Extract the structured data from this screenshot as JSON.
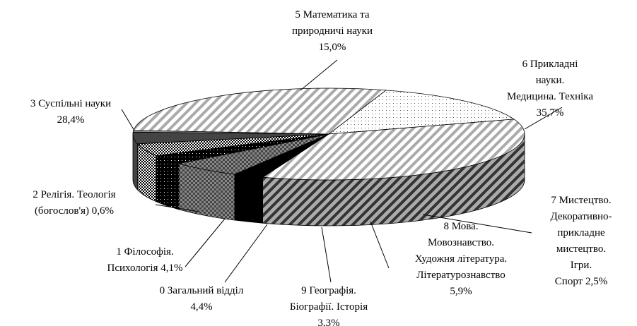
{
  "chart_data": {
    "type": "pie",
    "categories": [
      "5 Математика та\nприродничі науки",
      "6 Прикладні науки.\nМедицина. Техніка",
      "7 Мистецтво.\nДекоративно-\nприкладне\nмистецтво. Ігри.\nСпорт",
      "8 Мова.\nМовознавство.\nХудожня література.\nЛітературознавство",
      "9 Географія.\nБіографії. Історія",
      "0 Загальний відділ",
      "1 Філософія.\nПсихологія",
      "2 Релігія. Теологія\n(богослов'я)",
      "3 Суспільні науки"
    ],
    "values": [
      15.0,
      35.7,
      2.5,
      5.9,
      3.3,
      4.4,
      4.1,
      0.6,
      28.4
    ],
    "value_labels": [
      "15,0%",
      "35,7%",
      "2,5%",
      "5,9%",
      "3,3%",
      "4,4%",
      "4,1%",
      "0,6%",
      "28,4%"
    ]
  }
}
